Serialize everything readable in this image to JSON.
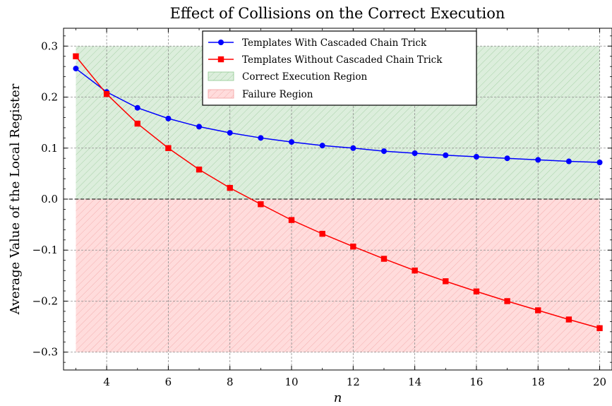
{
  "chart_data": {
    "type": "line",
    "title": "Effect of Collisions on the Correct Execution",
    "xlabel": "n",
    "ylabel": "Average Value of the Local Register",
    "xlim": [
      2.6,
      20.4
    ],
    "ylim": [
      -0.335,
      0.335
    ],
    "xticks": [
      4,
      6,
      8,
      10,
      12,
      14,
      16,
      18,
      20
    ],
    "yticks": [
      -0.3,
      -0.2,
      -0.1,
      0.0,
      0.1,
      0.2,
      0.3
    ],
    "ytick_labels": [
      "−0.3",
      "−0.2",
      "−0.1",
      "0.0",
      "0.1",
      "0.2",
      "0.3"
    ],
    "grid": true,
    "legend_position": "top-center",
    "x": [
      3,
      4,
      5,
      6,
      7,
      8,
      9,
      10,
      11,
      12,
      13,
      14,
      15,
      16,
      17,
      18,
      19,
      20
    ],
    "series": [
      {
        "name": "Templates With Cascaded Chain Trick",
        "color": "#0000ff",
        "marker": "circle",
        "values": [
          0.256,
          0.21,
          0.179,
          0.158,
          0.142,
          0.13,
          0.12,
          0.112,
          0.105,
          0.1,
          0.094,
          0.09,
          0.086,
          0.083,
          0.08,
          0.077,
          0.074,
          0.072
        ]
      },
      {
        "name": "Templates Without Cascaded Chain Trick",
        "color": "#ff0000",
        "marker": "square",
        "values": [
          0.28,
          0.206,
          0.148,
          0.1,
          0.058,
          0.022,
          -0.01,
          -0.041,
          -0.068,
          -0.093,
          -0.117,
          -0.14,
          -0.161,
          -0.181,
          -0.2,
          -0.218,
          -0.236,
          -0.253
        ]
      }
    ],
    "regions": [
      {
        "name": "Correct Execution Region",
        "y_range": [
          0.0,
          0.3
        ],
        "x_range": [
          3,
          20
        ],
        "color": "#b5ddb5"
      },
      {
        "name": "Failure Region",
        "y_range": [
          -0.3,
          0.0
        ],
        "x_range": [
          3,
          20
        ],
        "color": "#ffb5b5"
      }
    ],
    "reference_line": {
      "y": 0.0,
      "style": "dashed",
      "color": "#000000"
    }
  }
}
